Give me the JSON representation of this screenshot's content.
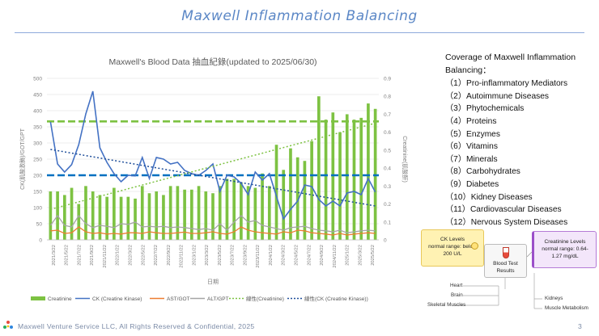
{
  "slide": {
    "title": "Maxwell Inflammation Balancing",
    "footer": "Maxwell Venture Service LLC, All Rights Reserved & Confidential, 2025",
    "page_number": "3"
  },
  "coverage": {
    "title": "Coverage of Maxwell Inflammation Balancing：",
    "items": [
      "（1）Pro-inflammatory Mediators",
      "（2）Autoimmune Diseases",
      "（3）Phytochemicals",
      "（4）Proteins",
      "（5）Enzymes",
      "（6）Vitamins",
      "（7）Minerals",
      "（8）Carbohydrates",
      "（9）Diabetes",
      "（10）Kidney Diseases",
      "（11）Cardiovascular Diseases",
      "（12）Nervous System Diseases"
    ]
  },
  "diagram": {
    "ck_line1": "CK Levels",
    "ck_line2": "normal range: below",
    "ck_line3": "200 U/L",
    "blood_line1": "Blood Test",
    "blood_line2": "Results",
    "cr_line1": "Creatinine Levels",
    "cr_line2": "normal range: 0.64-",
    "cr_line3": "1.27 mg/dL",
    "left_labels": [
      "Heart",
      "Brain",
      "Skeletal Muscles"
    ],
    "right_labels": [
      "Kidneys",
      "Muscle Metabolism"
    ]
  },
  "chart_data": {
    "type": "bar+line",
    "title": "Maxwell's Blood Data 抽血紀錄(updated to 2025/06/30)",
    "xlabel": "日期",
    "ylabel_left": "CK(肌酸激酶)/GOT/GPT",
    "ylabel_right": "Creatinine(肌酸酐)",
    "ylim_left": [
      0,
      500
    ],
    "ylim_right": [
      0,
      0.9
    ],
    "yticks_left": [
      0,
      50,
      100,
      150,
      200,
      250,
      300,
      350,
      400,
      450,
      500
    ],
    "yticks_right": [
      0,
      0.1,
      0.2,
      0.3,
      0.4,
      0.5,
      0.6,
      0.7,
      0.8,
      0.9
    ],
    "x_tick_labels": [
      "2021/3/22",
      "2021/5/22",
      "2021/7/22",
      "2021/9/22",
      "2021/11/22",
      "2022/1/22",
      "2022/3/22",
      "2022/5/22",
      "2022/7/22",
      "2022/9/22",
      "2022/11/22",
      "2023/1/22",
      "2023/3/22",
      "2023/5/22",
      "2023/7/22",
      "2023/9/22",
      "2023/11/22",
      "2024/1/22",
      "2024/3/22",
      "2024/5/22",
      "2024/7/22",
      "2024/9/22",
      "2024/11/22",
      "2025/1/22",
      "2025/3/22",
      "2025/5/22"
    ],
    "reference_lines": [
      {
        "axis": "left",
        "value": 200,
        "color": "#0070c0"
      },
      {
        "axis": "right",
        "value": 0.66,
        "color": "#7dc242"
      }
    ],
    "legend": [
      "Creatinine",
      "CK (Creatine Kinase)",
      "AST/GOT",
      "ALT/GPT",
      "線性(Creatinine)",
      "線性(CK (Creatine Kinase))"
    ],
    "legend_position": "bottom",
    "series": [
      {
        "name": "Creatinine",
        "kind": "bar",
        "axis": "right",
        "color": "#7dc242",
        "values": [
          0.27,
          0.27,
          0.25,
          0.29,
          0.2,
          0.3,
          0.27,
          0.25,
          0.24,
          0.29,
          0.24,
          0.24,
          0.23,
          0.3,
          0.26,
          0.27,
          0.25,
          0.3,
          0.3,
          0.28,
          0.28,
          0.3,
          0.27,
          0.26,
          0.3,
          0.34,
          0.34,
          0.32,
          0.3,
          0.29,
          0.37,
          0.3,
          0.53,
          0.39,
          0.51,
          0.46,
          0.44,
          0.55,
          0.8,
          0.67,
          0.71,
          0.6,
          0.7,
          0.67,
          0.68,
          0.76,
          0.73
        ]
      },
      {
        "name": "CK (Creatine Kinase)",
        "kind": "line",
        "axis": "left",
        "color": "#4472c4",
        "values": [
          365,
          235,
          210,
          233,
          295,
          390,
          460,
          285,
          240,
          205,
          180,
          200,
          198,
          255,
          190,
          255,
          250,
          235,
          240,
          215,
          205,
          200,
          215,
          235,
          150,
          200,
          195,
          175,
          140,
          210,
          185,
          205,
          135,
          65,
          95,
          120,
          170,
          165,
          125,
          105,
          120,
          105,
          145,
          150,
          140,
          190,
          148
        ]
      },
      {
        "name": "AST/GOT",
        "kind": "line",
        "axis": "left",
        "color": "#ed7d31",
        "values": [
          28,
          30,
          20,
          22,
          40,
          25,
          20,
          22,
          18,
          20,
          18,
          22,
          22,
          20,
          25,
          22,
          20,
          20,
          22,
          24,
          20,
          20,
          22,
          25,
          20,
          18,
          25,
          40,
          30,
          25,
          22,
          20,
          18,
          25,
          22,
          30,
          28,
          22,
          20,
          18,
          15,
          20,
          15,
          18,
          20,
          22,
          20
        ]
      },
      {
        "name": "ALT/GPT",
        "kind": "line",
        "axis": "left",
        "color": "#a5a5a5",
        "values": [
          45,
          75,
          45,
          40,
          75,
          50,
          38,
          45,
          42,
          38,
          50,
          48,
          55,
          40,
          42,
          40,
          42,
          38,
          40,
          38,
          35,
          32,
          35,
          30,
          50,
          30,
          55,
          75,
          55,
          60,
          45,
          40,
          35,
          30,
          38,
          40,
          42,
          35,
          30,
          28,
          25,
          30,
          22,
          25,
          28,
          30,
          28
        ]
      },
      {
        "name": "線性(Creatinine)",
        "kind": "trend",
        "axis": "right",
        "color": "#7dc242",
        "values": [
          0.17,
          0.65
        ]
      },
      {
        "name": "線性(CK (Creatine Kinase))",
        "kind": "trend",
        "axis": "left",
        "color": "#1f4e9a",
        "values": [
          280,
          105
        ]
      }
    ]
  }
}
